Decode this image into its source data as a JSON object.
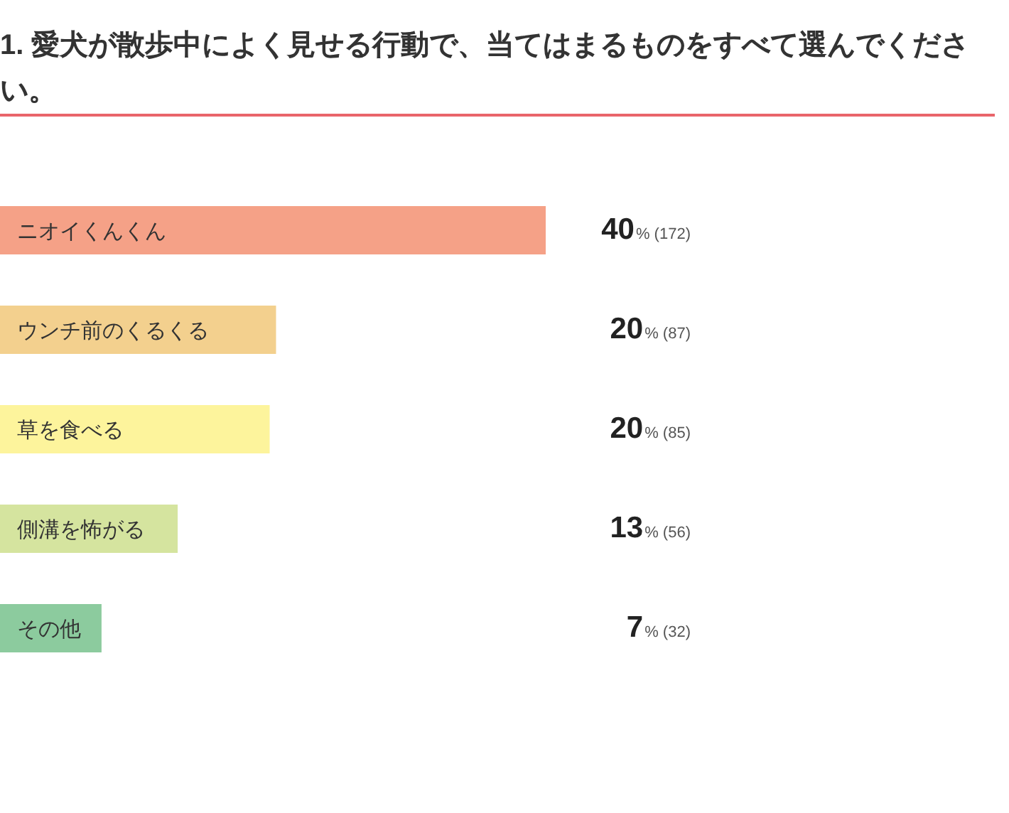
{
  "chart_data": {
    "type": "bar",
    "orientation": "horizontal",
    "title": "1. 愛犬が散歩中によく見せる行動で、当てはまるものをすべて選んでください。",
    "categories": [
      "ニオイくんくん",
      "ウンチ前のくるくる",
      "草を食べる",
      "側溝を怖がる",
      "その他"
    ],
    "values": [
      172,
      87,
      85,
      56,
      32
    ],
    "colors": [
      "#f5a187",
      "#f3d08e",
      "#fdf49c",
      "#d5e49f",
      "#8ccb9e"
    ],
    "value_labels": [
      "40% (172)",
      "20% (87)",
      "20% (85)",
      "13% (56)",
      "7% (32)"
    ]
  }
}
